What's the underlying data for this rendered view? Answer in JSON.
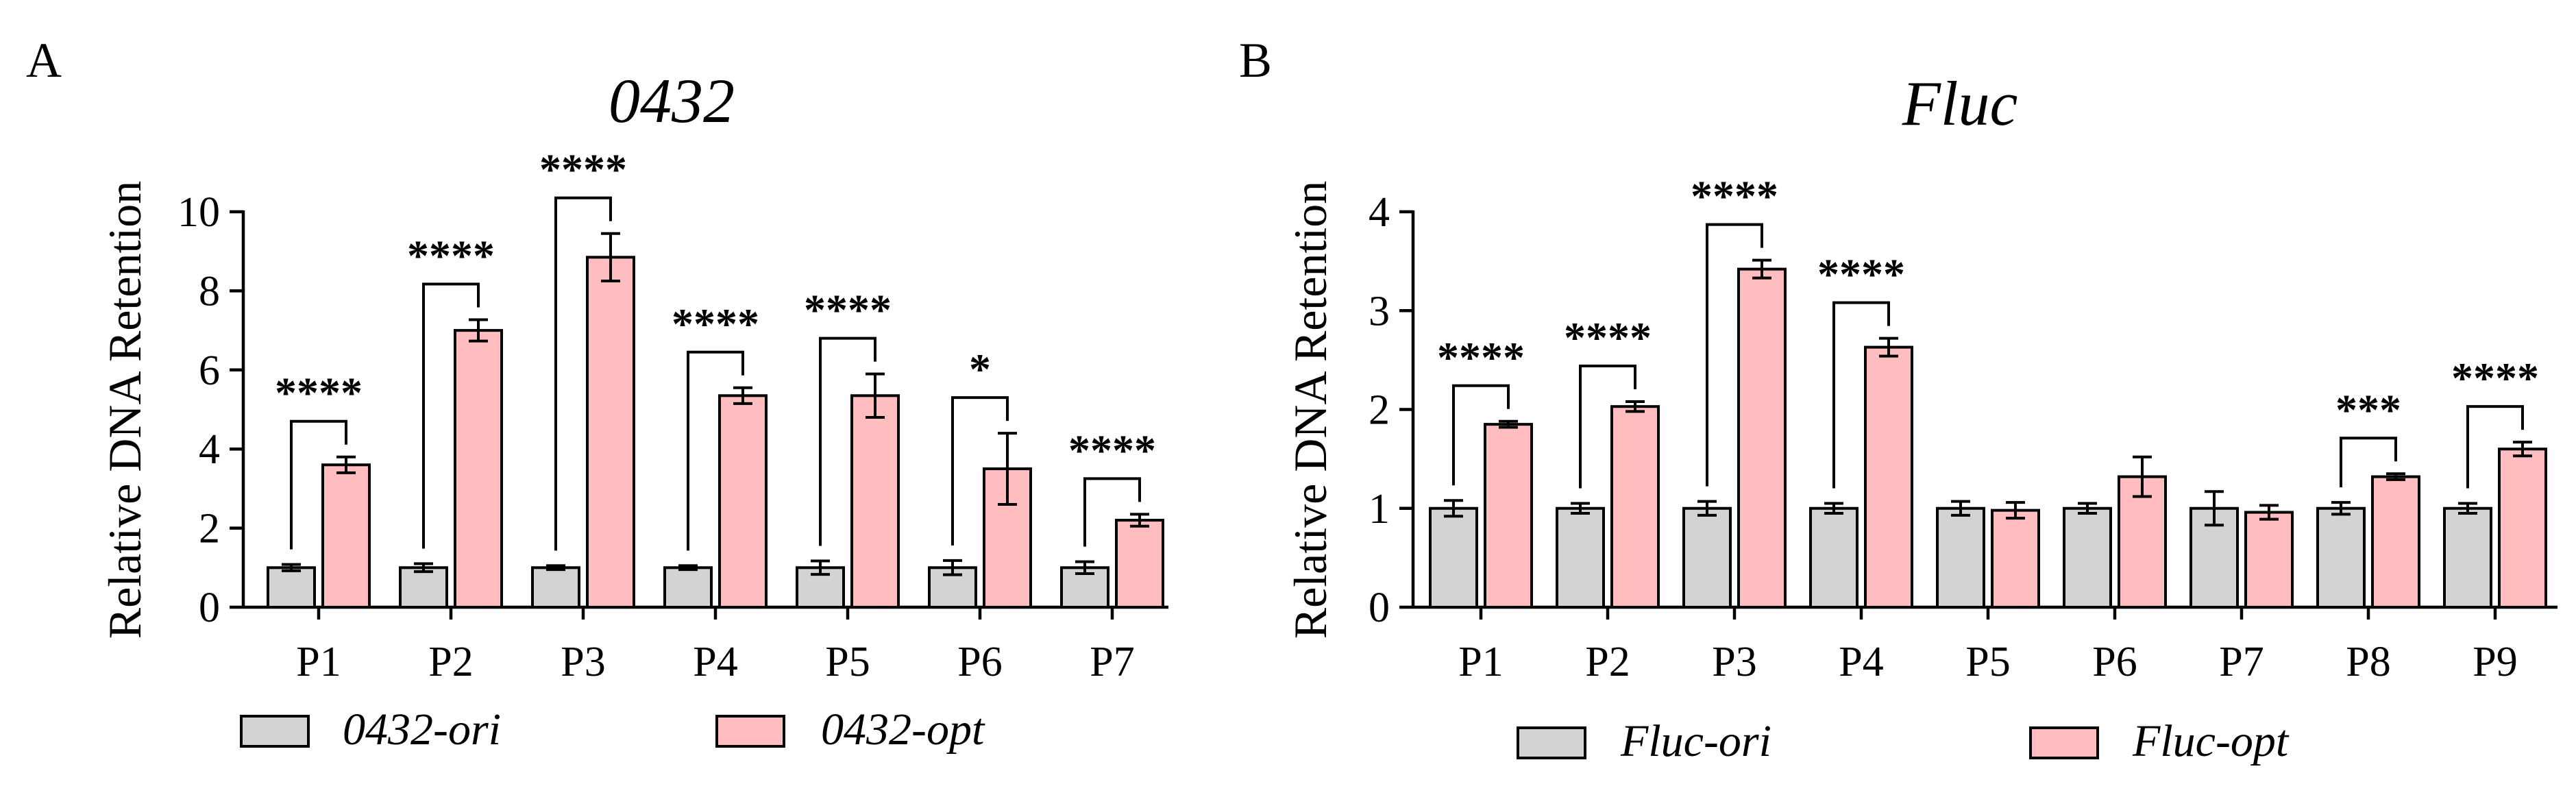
{
  "colors": {
    "ori": "#d3d3d3",
    "opt": "#ffbdc0",
    "stroke": "#000000"
  },
  "chart_data": [
    {
      "type": "bar",
      "panel": "A",
      "title": "0432",
      "ylabel": "Relative DNA Retention",
      "xlabel": "",
      "ylim": [
        0,
        10
      ],
      "yticks": [
        "0",
        "2",
        "4",
        "6",
        "8",
        "10"
      ],
      "categories": [
        "P1",
        "P2",
        "P3",
        "P4",
        "P5",
        "P6",
        "P7"
      ],
      "series": [
        {
          "name": "0432-ori",
          "values": [
            1,
            1,
            1,
            1,
            1,
            1,
            1
          ],
          "errors": [
            0.08,
            0.1,
            0.05,
            0.05,
            0.17,
            0.18,
            0.15
          ]
        },
        {
          "name": "0432-opt",
          "values": [
            3.6,
            7.0,
            8.85,
            5.35,
            5.35,
            3.5,
            2.2
          ],
          "errors": [
            0.2,
            0.27,
            0.6,
            0.2,
            0.55,
            0.9,
            0.15
          ]
        }
      ],
      "significance": [
        "****",
        "****",
        "****",
        "****",
        "****",
        "*",
        "****"
      ],
      "legend_position": "bottom"
    },
    {
      "type": "bar",
      "panel": "B",
      "title": "Fluc",
      "ylabel": "Relative DNA Retention",
      "xlabel": "",
      "ylim": [
        0,
        4
      ],
      "yticks": [
        "0",
        "1",
        "2",
        "3",
        "4"
      ],
      "categories": [
        "P1",
        "P2",
        "P3",
        "P4",
        "P5",
        "P6",
        "P7",
        "P8",
        "P9"
      ],
      "series": [
        {
          "name": "Fluc-ori",
          "values": [
            1,
            1,
            1,
            1,
            1,
            1,
            1,
            1,
            1
          ],
          "errors": [
            0.08,
            0.05,
            0.07,
            0.05,
            0.07,
            0.05,
            0.17,
            0.06,
            0.05
          ]
        },
        {
          "name": "Fluc-opt",
          "values": [
            1.85,
            2.03,
            3.42,
            2.63,
            0.98,
            1.32,
            0.96,
            1.32,
            1.6
          ],
          "errors": [
            0.03,
            0.05,
            0.09,
            0.09,
            0.08,
            0.2,
            0.07,
            0.03,
            0.07
          ]
        }
      ],
      "significance": [
        "****",
        "****",
        "****",
        "****",
        "",
        "",
        "",
        "***",
        "****"
      ],
      "legend_position": "bottom"
    }
  ]
}
